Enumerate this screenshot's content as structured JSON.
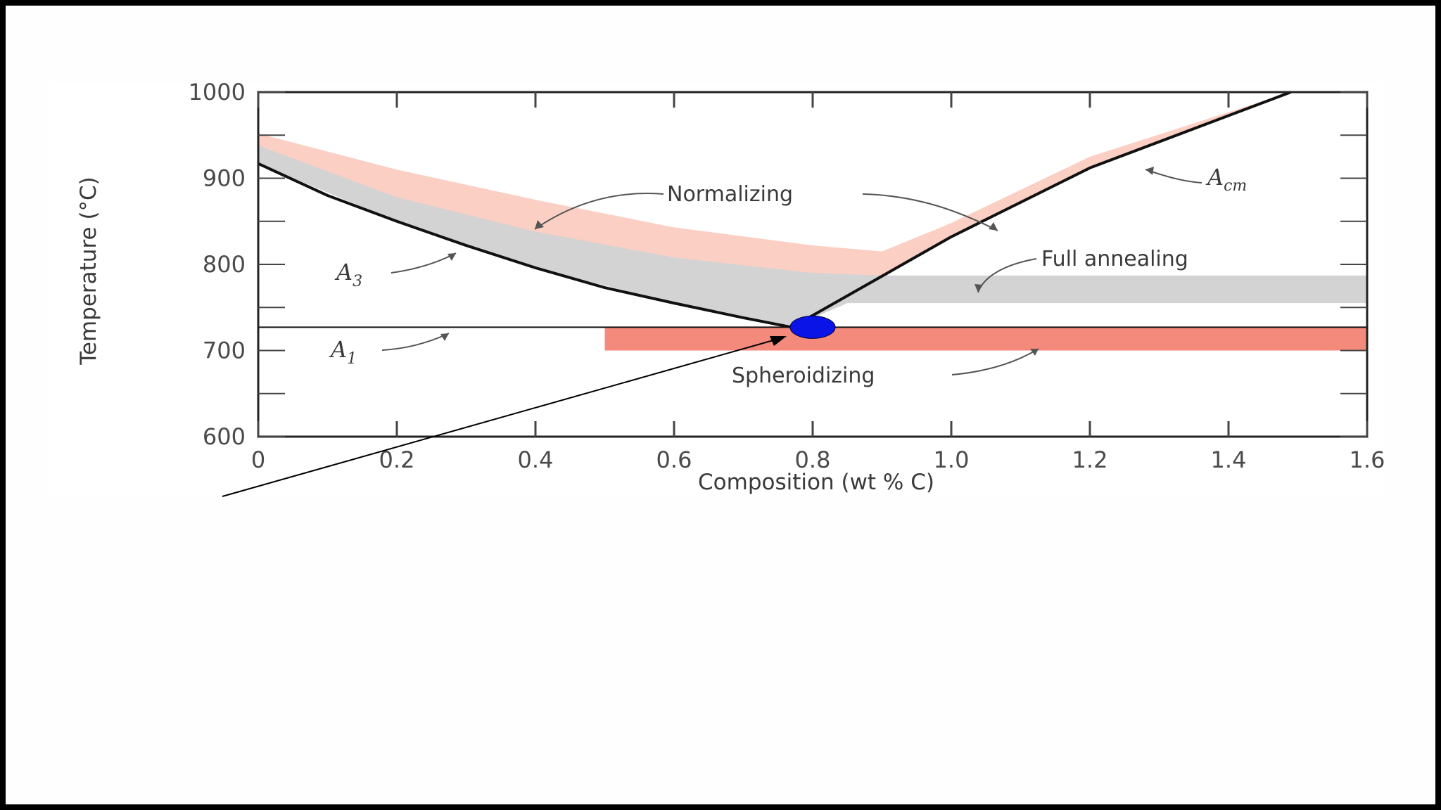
{
  "chart_data": {
    "type": "area",
    "title": "",
    "xlabel": "Composition (wt % C)",
    "ylabel": "Temperature (°C)",
    "xlim": [
      0,
      1.6
    ],
    "ylim": [
      600,
      1000
    ],
    "x_ticks": [
      {
        "value": 0,
        "label": "0"
      },
      {
        "value": 0.2,
        "label": "0.2"
      },
      {
        "value": 0.4,
        "label": "0.4"
      },
      {
        "value": 0.6,
        "label": "0.6"
      },
      {
        "value": 0.8,
        "label": "0.8"
      },
      {
        "value": 1.0,
        "label": "1.0"
      },
      {
        "value": 1.2,
        "label": "1.2"
      },
      {
        "value": 1.4,
        "label": "1.4"
      },
      {
        "value": 1.6,
        "label": "1.6"
      }
    ],
    "y_ticks": [
      {
        "value": 600,
        "label": "600"
      },
      {
        "value": 700,
        "label": "700"
      },
      {
        "value": 800,
        "label": "800"
      },
      {
        "value": 900,
        "label": "900"
      },
      {
        "value": 1000,
        "label": "1000"
      }
    ],
    "lines": [
      {
        "id": "A3",
        "label": "A",
        "sub": "3",
        "x": [
          0,
          0.1,
          0.2,
          0.3,
          0.4,
          0.5,
          0.6,
          0.7,
          0.77
        ],
        "y": [
          917,
          880,
          850,
          822,
          796,
          773,
          755,
          738,
          727
        ]
      },
      {
        "id": "Acm",
        "label": "A",
        "sub": "cm",
        "x": [
          0.77,
          1.0,
          1.2,
          1.49
        ],
        "y": [
          727,
          832,
          912,
          1000
        ]
      },
      {
        "id": "A1",
        "label": "A",
        "sub": "1",
        "x": [
          0,
          1.6
        ],
        "y": [
          727,
          727
        ]
      }
    ],
    "bands": [
      {
        "name": "Normalizing",
        "color": "#fbcfc3",
        "x": [
          0,
          0.2,
          0.4,
          0.6,
          0.8,
          0.9,
          1.0,
          1.2,
          1.49,
          1.49,
          1.2,
          1.0,
          0.85,
          0.77,
          0.7,
          0.6,
          0.4,
          0.2,
          0
        ],
        "y": [
          952,
          910,
          875,
          843,
          822,
          815,
          848,
          925,
          1000,
          1000,
          912,
          832,
          760,
          727,
          738,
          755,
          796,
          850,
          917
        ]
      },
      {
        "name": "Full annealing",
        "color": "#d3d3d3",
        "x": [
          0,
          0.2,
          0.4,
          0.6,
          0.8,
          0.9,
          1.6,
          1.6,
          0.85,
          0.77,
          0.7,
          0.6,
          0.4,
          0.2,
          0
        ],
        "y": [
          938,
          878,
          838,
          808,
          790,
          787,
          787,
          755,
          755,
          727,
          738,
          755,
          796,
          850,
          917
        ]
      },
      {
        "name": "Spheroidizing",
        "color": "#f48a7c",
        "x": [
          0.5,
          1.6,
          1.6,
          0.5
        ],
        "y": [
          727,
          727,
          700,
          700
        ]
      }
    ],
    "points": [
      {
        "name": "eutectoid-point",
        "x": 0.8,
        "y": 727,
        "color": "#0a14e6"
      }
    ],
    "annotations": [
      {
        "text": "Normalizing"
      },
      {
        "text": "Full annealing"
      },
      {
        "text": "Spheroidizing"
      }
    ],
    "grid": false,
    "legend": "none"
  }
}
